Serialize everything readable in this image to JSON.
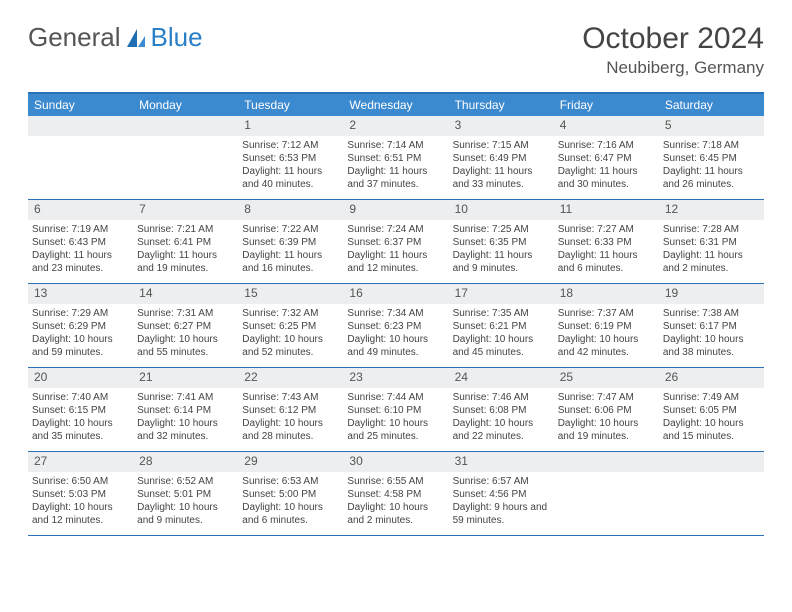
{
  "brand": {
    "word1": "General",
    "word2": "Blue"
  },
  "title": "October 2024",
  "location": "Neubiberg, Germany",
  "colors": {
    "header_bg": "#3b89cf",
    "border": "#2a71b8",
    "daynum_bg": "#eceeef",
    "text": "#444444"
  },
  "days_of_week": [
    "Sunday",
    "Monday",
    "Tuesday",
    "Wednesday",
    "Thursday",
    "Friday",
    "Saturday"
  ],
  "leading_blanks": 2,
  "cells": [
    {
      "n": 1,
      "sr": "7:12 AM",
      "ss": "6:53 PM",
      "dl": "11 hours and 40 minutes."
    },
    {
      "n": 2,
      "sr": "7:14 AM",
      "ss": "6:51 PM",
      "dl": "11 hours and 37 minutes."
    },
    {
      "n": 3,
      "sr": "7:15 AM",
      "ss": "6:49 PM",
      "dl": "11 hours and 33 minutes."
    },
    {
      "n": 4,
      "sr": "7:16 AM",
      "ss": "6:47 PM",
      "dl": "11 hours and 30 minutes."
    },
    {
      "n": 5,
      "sr": "7:18 AM",
      "ss": "6:45 PM",
      "dl": "11 hours and 26 minutes."
    },
    {
      "n": 6,
      "sr": "7:19 AM",
      "ss": "6:43 PM",
      "dl": "11 hours and 23 minutes."
    },
    {
      "n": 7,
      "sr": "7:21 AM",
      "ss": "6:41 PM",
      "dl": "11 hours and 19 minutes."
    },
    {
      "n": 8,
      "sr": "7:22 AM",
      "ss": "6:39 PM",
      "dl": "11 hours and 16 minutes."
    },
    {
      "n": 9,
      "sr": "7:24 AM",
      "ss": "6:37 PM",
      "dl": "11 hours and 12 minutes."
    },
    {
      "n": 10,
      "sr": "7:25 AM",
      "ss": "6:35 PM",
      "dl": "11 hours and 9 minutes."
    },
    {
      "n": 11,
      "sr": "7:27 AM",
      "ss": "6:33 PM",
      "dl": "11 hours and 6 minutes."
    },
    {
      "n": 12,
      "sr": "7:28 AM",
      "ss": "6:31 PM",
      "dl": "11 hours and 2 minutes."
    },
    {
      "n": 13,
      "sr": "7:29 AM",
      "ss": "6:29 PM",
      "dl": "10 hours and 59 minutes."
    },
    {
      "n": 14,
      "sr": "7:31 AM",
      "ss": "6:27 PM",
      "dl": "10 hours and 55 minutes."
    },
    {
      "n": 15,
      "sr": "7:32 AM",
      "ss": "6:25 PM",
      "dl": "10 hours and 52 minutes."
    },
    {
      "n": 16,
      "sr": "7:34 AM",
      "ss": "6:23 PM",
      "dl": "10 hours and 49 minutes."
    },
    {
      "n": 17,
      "sr": "7:35 AM",
      "ss": "6:21 PM",
      "dl": "10 hours and 45 minutes."
    },
    {
      "n": 18,
      "sr": "7:37 AM",
      "ss": "6:19 PM",
      "dl": "10 hours and 42 minutes."
    },
    {
      "n": 19,
      "sr": "7:38 AM",
      "ss": "6:17 PM",
      "dl": "10 hours and 38 minutes."
    },
    {
      "n": 20,
      "sr": "7:40 AM",
      "ss": "6:15 PM",
      "dl": "10 hours and 35 minutes."
    },
    {
      "n": 21,
      "sr": "7:41 AM",
      "ss": "6:14 PM",
      "dl": "10 hours and 32 minutes."
    },
    {
      "n": 22,
      "sr": "7:43 AM",
      "ss": "6:12 PM",
      "dl": "10 hours and 28 minutes."
    },
    {
      "n": 23,
      "sr": "7:44 AM",
      "ss": "6:10 PM",
      "dl": "10 hours and 25 minutes."
    },
    {
      "n": 24,
      "sr": "7:46 AM",
      "ss": "6:08 PM",
      "dl": "10 hours and 22 minutes."
    },
    {
      "n": 25,
      "sr": "7:47 AM",
      "ss": "6:06 PM",
      "dl": "10 hours and 19 minutes."
    },
    {
      "n": 26,
      "sr": "7:49 AM",
      "ss": "6:05 PM",
      "dl": "10 hours and 15 minutes."
    },
    {
      "n": 27,
      "sr": "6:50 AM",
      "ss": "5:03 PM",
      "dl": "10 hours and 12 minutes."
    },
    {
      "n": 28,
      "sr": "6:52 AM",
      "ss": "5:01 PM",
      "dl": "10 hours and 9 minutes."
    },
    {
      "n": 29,
      "sr": "6:53 AM",
      "ss": "5:00 PM",
      "dl": "10 hours and 6 minutes."
    },
    {
      "n": 30,
      "sr": "6:55 AM",
      "ss": "4:58 PM",
      "dl": "10 hours and 2 minutes."
    },
    {
      "n": 31,
      "sr": "6:57 AM",
      "ss": "4:56 PM",
      "dl": "9 hours and 59 minutes."
    }
  ],
  "labels": {
    "sunrise": "Sunrise: ",
    "sunset": "Sunset: ",
    "daylight": "Daylight: "
  }
}
